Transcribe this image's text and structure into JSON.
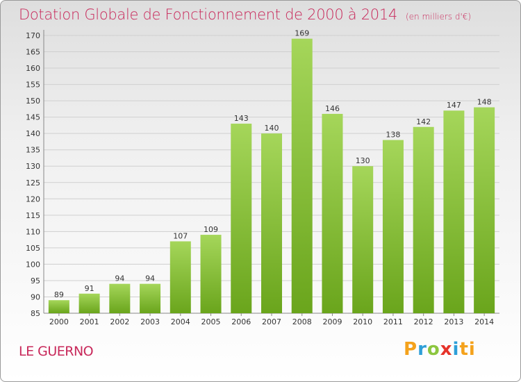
{
  "header": {
    "title": "Dotation Globale de Fonctionnement de 2000 à 2014",
    "subtitle": "(en milliers d'€)"
  },
  "footer": {
    "commune": "LE GUERNO",
    "logo": [
      "P",
      "r",
      "o",
      "x",
      "i",
      "t",
      "i"
    ]
  },
  "colors": {
    "title": "#c8285a",
    "bar_light": "#a5d65a",
    "bar_dark": "#6aa51c"
  },
  "chart_data": {
    "type": "bar",
    "categories": [
      "2000",
      "2001",
      "2002",
      "2003",
      "2004",
      "2005",
      "2006",
      "2007",
      "2008",
      "2009",
      "2010",
      "2011",
      "2012",
      "2013",
      "2014"
    ],
    "values": [
      89,
      91,
      94,
      94,
      107,
      109,
      143,
      140,
      169,
      146,
      130,
      138,
      142,
      147,
      148
    ],
    "yticks": [
      85,
      90,
      95,
      100,
      105,
      110,
      115,
      120,
      125,
      130,
      135,
      140,
      145,
      150,
      155,
      160,
      165,
      170
    ],
    "ylim": [
      85,
      170
    ],
    "grid": true,
    "data_labels": true
  }
}
